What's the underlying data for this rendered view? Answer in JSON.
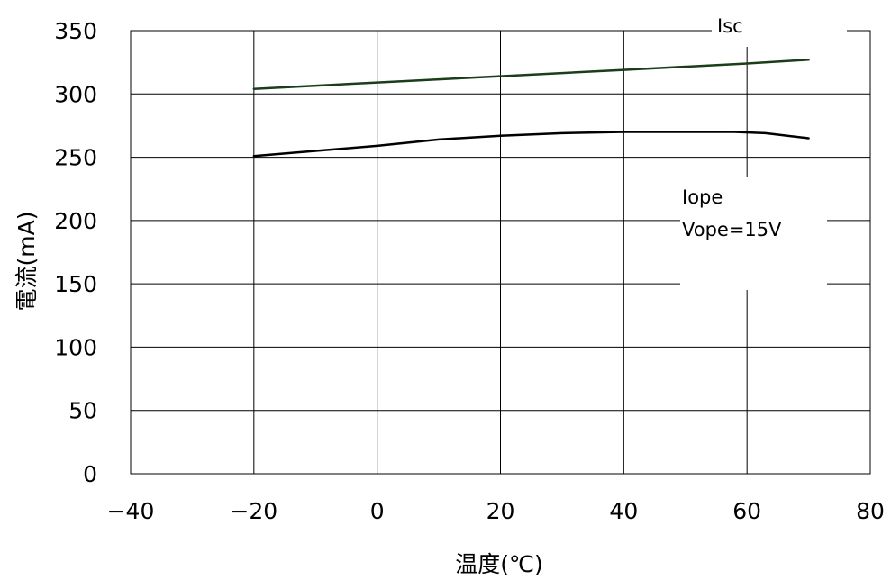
{
  "chart_data": {
    "type": "line",
    "xlabel": "温度(℃)",
    "ylabel": "電流(mA)",
    "xlim": [
      -40,
      80
    ],
    "ylim": [
      0,
      350
    ],
    "x_ticks": [
      "−40",
      "−20",
      "0",
      "20",
      "40",
      "60",
      "80"
    ],
    "y_ticks": [
      "0",
      "50",
      "100",
      "150",
      "200",
      "250",
      "300",
      "350"
    ],
    "grid": true,
    "series": [
      {
        "name": "Isc",
        "color": "#1a3d1a",
        "x": [
          -20,
          0,
          20,
          40,
          60,
          70
        ],
        "y": [
          304,
          309,
          314,
          319,
          324,
          327
        ]
      },
      {
        "name": "Iope",
        "color": "#000000",
        "x": [
          -20,
          -10,
          0,
          10,
          20,
          30,
          40,
          50,
          58,
          63,
          70
        ],
        "y": [
          251,
          255,
          259,
          264,
          267,
          269,
          270,
          270,
          270,
          269,
          265
        ]
      }
    ],
    "annotations": [
      {
        "text": "Isc"
      },
      {
        "text": "Iope"
      },
      {
        "text": "Vope=15V"
      }
    ]
  }
}
